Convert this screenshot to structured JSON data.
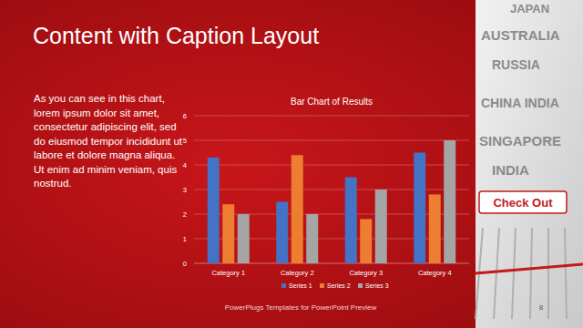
{
  "slide": {
    "title": "Content with Caption Layout",
    "caption": "As you can see in this chart, lorem ipsum dolor sit amet, consectetur adipiscing elit, sed do eiusmod tempor incididunt ut labore et dolore magna aliqua. Ut enim ad minim veniam, quis nostrud.",
    "footer": "PowerPlugs Templates for PowerPoint Preview",
    "page_number": "8"
  },
  "photo": {
    "words": [
      "JAPAN",
      "AUSTRALIA",
      "RUSSIA",
      "CHINA INDIA",
      "SINGAPORE",
      "INDIA"
    ],
    "button": "Check Out"
  },
  "chart_data": {
    "type": "bar",
    "title": "Bar Chart of Results",
    "categories": [
      "Category 1",
      "Category 2",
      "Category 3",
      "Category 4"
    ],
    "series": [
      {
        "name": "Series 1",
        "color": "#4472c4",
        "values": [
          4.3,
          2.5,
          3.5,
          4.5
        ]
      },
      {
        "name": "Series 2",
        "color": "#ed7d31",
        "values": [
          2.4,
          4.4,
          1.8,
          2.8
        ]
      },
      {
        "name": "Series 3",
        "color": "#a5a5a5",
        "values": [
          2.0,
          2.0,
          3.0,
          5.0
        ]
      }
    ],
    "ylim": [
      0,
      6
    ],
    "yticks": [
      0,
      1,
      2,
      3,
      4,
      5,
      6
    ],
    "grid": true,
    "legend": "bottom"
  }
}
